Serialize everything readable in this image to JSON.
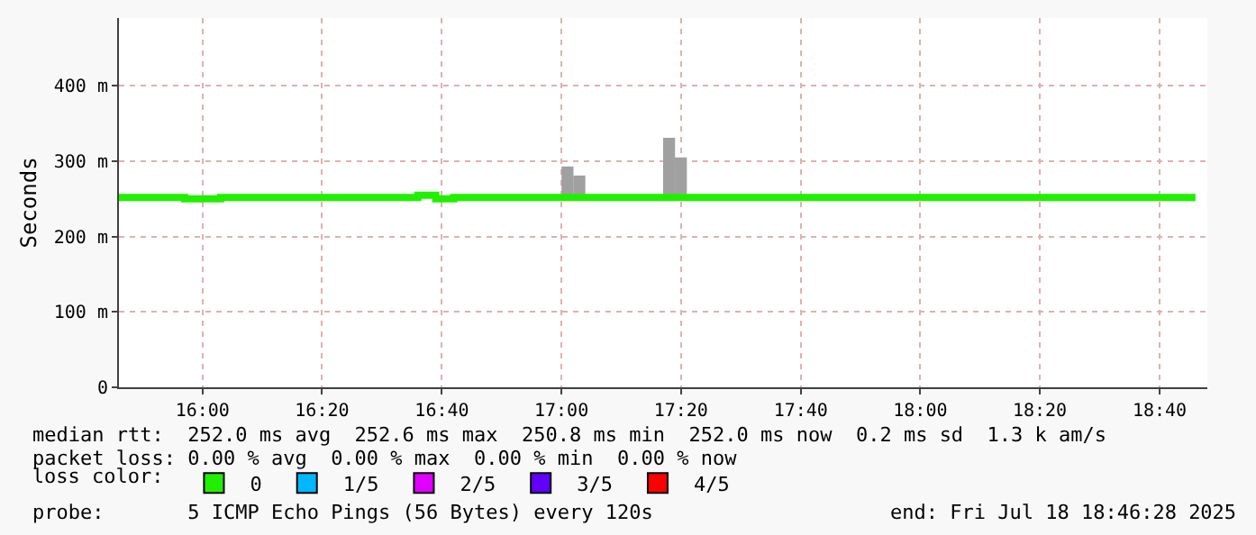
{
  "chart_data": {
    "type": "step",
    "ylabel": "Seconds",
    "legend_title": "loss color:",
    "series": [
      {
        "type": "bar",
        "color": "#a0a0a0",
        "x": [
          17.017,
          17.05,
          17.3,
          17.333
        ],
        "base": [
          252,
          252,
          252,
          252
        ],
        "values": [
          41,
          29,
          79,
          53
        ]
      },
      {
        "color": "#20f000",
        "x": [
          15.767,
          15.95,
          16.05,
          16.6,
          16.65,
          16.7,
          18.767
        ],
        "values": [
          252,
          250,
          252,
          255,
          250,
          252,
          252
        ]
      },
      {
        "type": "scatter",
        "marker": "square",
        "name": "0",
        "color": "#20f000",
        "x": [
          null
        ],
        "values": [
          null
        ]
      },
      {
        "type": "scatter",
        "marker": "square",
        "name": "1/5",
        "color": "#00b8ff",
        "x": [
          null
        ],
        "values": [
          null
        ]
      },
      {
        "type": "scatter",
        "marker": "square",
        "name": "2/5",
        "color": "#e000ff",
        "x": [
          null
        ],
        "values": [
          null
        ]
      },
      {
        "type": "scatter",
        "marker": "square",
        "name": "3/5",
        "color": "#6000ff",
        "x": [
          null
        ],
        "values": [
          null
        ]
      },
      {
        "type": "scatter",
        "marker": "square",
        "name": "4/5",
        "color": "#ff0000",
        "x": [
          null
        ],
        "values": [
          null
        ]
      }
    ],
    "xlim": [
      15.767,
      18.8
    ],
    "xticks": [
      {
        "value": 16,
        "label": "16:00"
      },
      {
        "value": 16.333,
        "label": "16:20"
      },
      {
        "value": 16.667,
        "label": "16:40"
      },
      {
        "value": 17,
        "label": "17:00"
      },
      {
        "value": 17.333,
        "label": "17:20"
      },
      {
        "value": 17.667,
        "label": "17:40"
      },
      {
        "value": 18,
        "label": "18:00"
      },
      {
        "value": 18.333,
        "label": "18:20"
      },
      {
        "value": 18.667,
        "label": "18:40"
      }
    ],
    "ylim": [
      0,
      490
    ],
    "yticks": [
      0,
      {
        "value": 100,
        "label": "100 m"
      },
      {
        "value": 200,
        "label": "200 m"
      },
      {
        "value": 300,
        "label": "300 m"
      },
      {
        "value": 400,
        "label": "400 m"
      }
    ],
    "grid": true,
    "legend": "bottom",
    "annotations": [
      "median rtt:  252.0 ms avg  252.6 ms max  250.8 ms min  252.0 ms now  0.2 ms sd  1.3 k am/s",
      "packet loss: 0.00 % avg  0.00 % max  0.00 % min  0.00 % now",
      "probe:       5 ICMP Echo Pings (56 Bytes) every 120s",
      "end: Fri Jul 18 18:46:28 2025"
    ]
  }
}
